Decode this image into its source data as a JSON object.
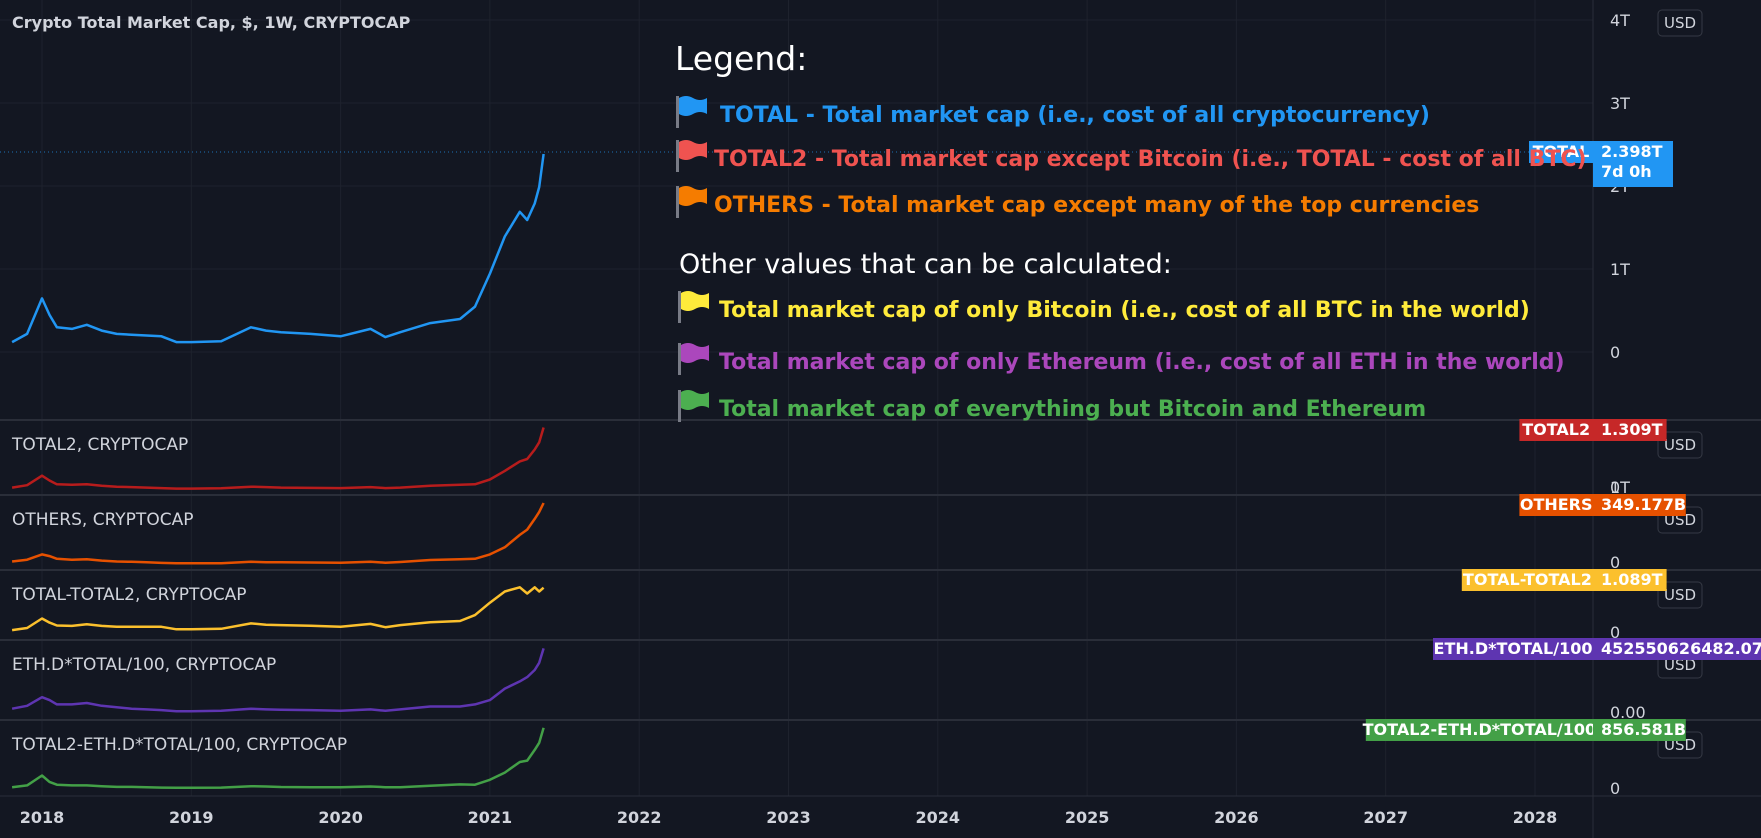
{
  "main_title": "Crypto Total Market Cap, $, 1W, CRYPTOCAP",
  "currency_label": "USD",
  "legend": {
    "heading": "Legend:",
    "items": [
      {
        "text": "TOTAL - Total market cap (i.e., cost of all cryptocurrency)",
        "color": "#2196f3"
      },
      {
        "text": "TOTAL2 - Total market cap except Bitcoin (i.e., TOTAL  - cost of all BTC)",
        "color": "#ef5350"
      },
      {
        "text": "OTHERS - Total market cap except many of the top currencies",
        "color": "#f57c00"
      }
    ],
    "subheading": "Other values that can be calculated:",
    "extra_items": [
      {
        "text": "Total market cap of only Bitcoin (i.e., cost of all BTC in the world)",
        "color": "#ffeb3b"
      },
      {
        "text": "Total market cap of only Ethereum (i.e., cost of all ETH in the world)",
        "color": "#ab47bc"
      },
      {
        "text": "Total market cap of everything but Bitcoin and Ethereum",
        "color": "#4caf50"
      }
    ]
  },
  "chart_data": {
    "type": "line",
    "x_axis_labels": [
      "2018",
      "2019",
      "2020",
      "2021",
      "2022",
      "2023",
      "2024",
      "2025",
      "2026",
      "2027",
      "2028"
    ],
    "x_domain": [
      2017.8,
      2029.5
    ],
    "x": [
      2017.8,
      2017.9,
      2018.0,
      2018.05,
      2018.1,
      2018.2,
      2018.3,
      2018.4,
      2018.5,
      2018.6,
      2018.7,
      2018.8,
      2018.9,
      2019.0,
      2019.2,
      2019.4,
      2019.5,
      2019.6,
      2019.8,
      2020.0,
      2020.2,
      2020.3,
      2020.4,
      2020.6,
      2020.8,
      2020.9,
      2021.0,
      2021.1,
      2021.2,
      2021.25,
      2021.3,
      2021.33,
      2021.36
    ],
    "series": [
      {
        "name": "TOTAL",
        "pane_title": "",
        "color": "#2196f3",
        "y_ticks": [
          "4T",
          "3T",
          "2T",
          "1T",
          "0"
        ],
        "ylim": [
          0,
          4000000000000
        ],
        "last_value": "2.398T",
        "countdown": "7d 0h",
        "values": [
          120000000000.0,
          220000000000.0,
          650000000000.0,
          450000000000.0,
          300000000000.0,
          280000000000.0,
          330000000000.0,
          260000000000.0,
          220000000000.0,
          210000000000.0,
          200000000000.0,
          190000000000.0,
          120000000000.0,
          120000000000.0,
          130000000000.0,
          300000000000.0,
          260000000000.0,
          240000000000.0,
          220000000000.0,
          190000000000.0,
          280000000000.0,
          180000000000.0,
          240000000000.0,
          350000000000.0,
          400000000000.0,
          550000000000.0,
          950000000000.0,
          1400000000000.0,
          1700000000000.0,
          1600000000000.0,
          1800000000000.0,
          2000000000000.0,
          2400000000000.0
        ]
      },
      {
        "name": "TOTAL2",
        "pane_title": "TOTAL2, CRYPTOCAP",
        "color": "#b71c1c",
        "y_ticks": [
          "1T",
          "0"
        ],
        "ylim": [
          0,
          1300000000000
        ],
        "last_value": "1.309T",
        "values": [
          50000000000.0,
          100000000000.0,
          300000000000.0,
          200000000000.0,
          120000000000.0,
          110000000000.0,
          120000000000.0,
          90000000000.0,
          70000000000.0,
          60000000000.0,
          50000000000.0,
          40000000000.0,
          30000000000.0,
          30000000000.0,
          35000000000.0,
          70000000000.0,
          60000000000.0,
          50000000000.0,
          45000000000.0,
          40000000000.0,
          60000000000.0,
          40000000000.0,
          50000000000.0,
          90000000000.0,
          110000000000.0,
          120000000000.0,
          220000000000.0,
          400000000000.0,
          600000000000.0,
          650000000000.0,
          850000000000.0,
          1000000000000.0,
          1310000000000.0
        ]
      },
      {
        "name": "OTHERS",
        "pane_title": "OTHERS, CRYPTOCAP",
        "color": "#e65100",
        "y_ticks": [
          "0"
        ],
        "ylim": [
          0,
          350000000000
        ],
        "last_value": "349.177B",
        "values": [
          20000000000.0,
          30000000000.0,
          60000000000.0,
          50000000000.0,
          35000000000.0,
          30000000000.0,
          32000000000.0,
          25000000000.0,
          20000000000.0,
          18000000000.0,
          15000000000.0,
          12000000000.0,
          10000000000.0,
          10000000000.0,
          10000000000.0,
          18000000000.0,
          16000000000.0,
          15000000000.0,
          14000000000.0,
          13000000000.0,
          18000000000.0,
          13000000000.0,
          17000000000.0,
          28000000000.0,
          32000000000.0,
          35000000000.0,
          60000000000.0,
          100000000000.0,
          170000000000.0,
          200000000000.0,
          260000000000.0,
          300000000000.0,
          350000000000.0
        ]
      },
      {
        "name": "TOTAL-TOTAL2",
        "pane_title": "TOTAL-TOTAL2, CRYPTOCAP",
        "color": "#fbc02d",
        "y_ticks": [
          "0"
        ],
        "ylim": [
          0,
          1300000000000
        ],
        "last_value": "1.089T",
        "values": [
          70000000000.0,
          120000000000.0,
          350000000000.0,
          250000000000.0,
          180000000000.0,
          170000000000.0,
          210000000000.0,
          170000000000.0,
          150000000000.0,
          150000000000.0,
          150000000000.0,
          150000000000.0,
          90000000000.0,
          90000000000.0,
          100000000000.0,
          230000000000.0,
          200000000000.0,
          190000000000.0,
          175000000000.0,
          150000000000.0,
          220000000000.0,
          140000000000.0,
          190000000000.0,
          260000000000.0,
          290000000000.0,
          430000000000.0,
          730000000000.0,
          1000000000000.0,
          1100000000000.0,
          950000000000.0,
          1100000000000.0,
          1000000000000.0,
          1090000000000.0
        ]
      },
      {
        "name": "ETH.D*TOTAL/100",
        "pane_title": "ETH.D*TOTAL/100, CRYPTOCAP",
        "color": "#5e35b1",
        "y_ticks": [
          "0.00"
        ],
        "ylim": [
          0,
          460000000000
        ],
        "last_value": "452550626482.07",
        "values": [
          30000000000.0,
          50000000000.0,
          110000000000.0,
          90000000000.0,
          60000000000.0,
          60000000000.0,
          70000000000.0,
          50000000000.0,
          40000000000.0,
          30000000000.0,
          25000000000.0,
          20000000000.0,
          12000000000.0,
          12000000000.0,
          15000000000.0,
          30000000000.0,
          25000000000.0,
          22000000000.0,
          20000000000.0,
          15000000000.0,
          25000000000.0,
          15000000000.0,
          25000000000.0,
          45000000000.0,
          45000000000.0,
          60000000000.0,
          90000000000.0,
          170000000000.0,
          220000000000.0,
          250000000000.0,
          300000000000.0,
          350000000000.0,
          450000000000.0
        ]
      },
      {
        "name": "TOTAL2-ETH.D*TOTAL/100",
        "pane_title": "TOTAL2-ETH.D*TOTAL/100, CRYPTOCAP",
        "color": "#43a047",
        "y_ticks": [
          "0"
        ],
        "ylim": [
          0,
          900000000000
        ],
        "last_value": "856.581B",
        "values": [
          25000000000.0,
          50000000000.0,
          190000000000.0,
          100000000000.0,
          60000000000.0,
          50000000000.0,
          50000000000.0,
          40000000000.0,
          30000000000.0,
          30000000000.0,
          25000000000.0,
          20000000000.0,
          18000000000.0,
          18000000000.0,
          20000000000.0,
          40000000000.0,
          35000000000.0,
          28000000000.0,
          25000000000.0,
          25000000000.0,
          35000000000.0,
          25000000000.0,
          25000000000.0,
          45000000000.0,
          65000000000.0,
          60000000000.0,
          130000000000.0,
          230000000000.0,
          380000000000.0,
          400000000000.0,
          550000000000.0,
          650000000000.0,
          860000000000.0
        ]
      }
    ]
  }
}
